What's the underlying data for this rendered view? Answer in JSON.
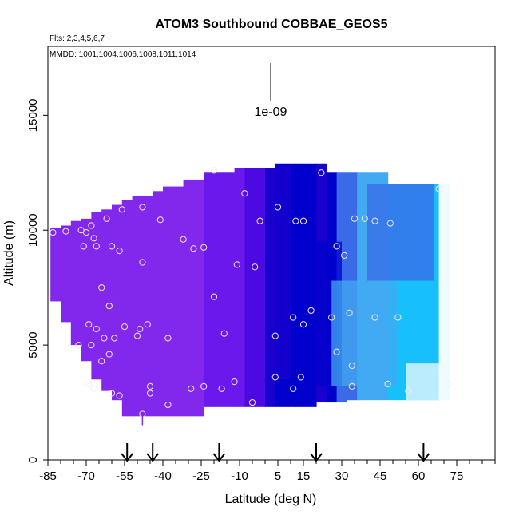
{
  "chart_data": {
    "type": "heatmap",
    "title": "ATOM3 Southbound COBBAE_GEOS5",
    "subtitle_flights": "Flts: 2,3,4,5,6,7",
    "subtitle_dates": "MMDD: 1001,1004,1006,1008,1011,1014",
    "xlabel": "Latitude (deg N)",
    "ylabel": "Altitude (m)",
    "xlim": [
      -85,
      90
    ],
    "ylim": [
      0,
      18000
    ],
    "x_ticks": [
      -85,
      -70,
      -55,
      -40,
      -25,
      -10,
      5,
      15,
      30,
      45,
      60,
      75
    ],
    "x_tick_labels": [
      "-85",
      "-70",
      "-55",
      "-40",
      "-25",
      "-10",
      "5",
      "15",
      "30",
      "45",
      "60",
      "75"
    ],
    "y_ticks": [
      0,
      5000,
      10000,
      15000
    ],
    "y_tick_labels": [
      "0",
      "5000",
      "10000",
      "15000"
    ],
    "scale_label": "1e-09",
    "grid": false,
    "arrow_latitudes": [
      -54,
      -44,
      -18,
      20,
      62
    ],
    "colors": [
      "#8228ed",
      "#6b18ec",
      "#4b0ae2",
      "#1a00cf",
      "#0000cc",
      "#3a6ae8",
      "#42aaf2",
      "#18c0fb",
      "#f0fbfe"
    ],
    "columns": [
      {
        "lat": -82,
        "top": 10100,
        "bottom": 6900,
        "c": 0
      },
      {
        "lat": -78,
        "top": 10200,
        "bottom": 6000,
        "c": 0
      },
      {
        "lat": -74,
        "top": 10400,
        "bottom": 5000,
        "c": 0
      },
      {
        "lat": -70,
        "top": 10500,
        "bottom": 4300,
        "c": 0
      },
      {
        "lat": -66,
        "top": 10800,
        "bottom": 3500,
        "c": 0
      },
      {
        "lat": -62,
        "top": 10900,
        "bottom": 3000,
        "c": 0
      },
      {
        "lat": -58,
        "top": 11100,
        "bottom": 2600,
        "c": 0
      },
      {
        "lat": -54,
        "top": 11300,
        "bottom": 1900,
        "c": 0
      },
      {
        "lat": -50,
        "top": 11500,
        "bottom": 1900,
        "c": 0
      },
      {
        "lat": -46,
        "top": 11500,
        "bottom": 1900,
        "c": 0
      },
      {
        "lat": -42,
        "top": 11700,
        "bottom": 1900,
        "c": 0
      },
      {
        "lat": -38,
        "top": 11900,
        "bottom": 1900,
        "c": 0
      },
      {
        "lat": -34,
        "top": 11900,
        "bottom": 1900,
        "c": 0
      },
      {
        "lat": -30,
        "top": 12200,
        "bottom": 1900,
        "c": 0
      },
      {
        "lat": -26,
        "top": 12200,
        "bottom": 1900,
        "c": 0
      },
      {
        "lat": -22,
        "top": 12500,
        "bottom": 2300,
        "c": 1
      },
      {
        "lat": -18,
        "top": 12500,
        "bottom": 2300,
        "c": 1
      },
      {
        "lat": -14,
        "top": 12500,
        "bottom": 2300,
        "c": 1
      },
      {
        "lat": -10,
        "top": 12700,
        "bottom": 2300,
        "c": 1
      },
      {
        "lat": -6,
        "top": 12700,
        "bottom": 2300,
        "c": 2
      },
      {
        "lat": -2,
        "top": 12700,
        "bottom": 2300,
        "c": 2
      },
      {
        "lat": 2,
        "top": 12700,
        "bottom": 2300,
        "c": 3
      },
      {
        "lat": 6,
        "top": 12900,
        "bottom": 2300,
        "c": 4
      },
      {
        "lat": 10,
        "top": 12900,
        "bottom": 2300,
        "c": 4
      },
      {
        "lat": 14,
        "top": 12900,
        "bottom": 2300,
        "c": 4
      },
      {
        "lat": 18,
        "top": 12900,
        "bottom": 2300,
        "c": 4
      },
      {
        "lat": 22,
        "top": 12900,
        "bottom": 2500,
        "c": 3
      },
      {
        "lat": 26,
        "top": 12500,
        "bottom": 2500,
        "c": 4
      },
      {
        "lat": 30,
        "top": 12500,
        "bottom": 2500,
        "c": 5
      },
      {
        "lat": 34,
        "top": 12500,
        "bottom": 2600,
        "c": 5
      },
      {
        "lat": 38,
        "top": 12500,
        "bottom": 2600,
        "c": 6
      },
      {
        "lat": 42,
        "top": 12500,
        "bottom": 2600,
        "c": 6
      },
      {
        "lat": 46,
        "top": 12500,
        "bottom": 2600,
        "c": 6
      },
      {
        "lat": 50,
        "top": 12000,
        "bottom": 2600,
        "c": 7
      },
      {
        "lat": 54,
        "top": 12000,
        "bottom": 2600,
        "c": 7
      },
      {
        "lat": 58,
        "top": 12000,
        "bottom": 2600,
        "c": 7
      },
      {
        "lat": 62,
        "top": 12000,
        "bottom": 2600,
        "c": 7
      },
      {
        "lat": 66,
        "top": 12000,
        "bottom": 2600,
        "c": 7
      },
      {
        "lat": 70,
        "top": 12000,
        "bottom": 2600,
        "c": 8
      }
    ],
    "overlays": [
      {
        "lat1": 20,
        "lat2": 30,
        "y1": 3200,
        "y2": 9500,
        "c": 4
      },
      {
        "lat1": 26,
        "lat2": 52,
        "y1": 3200,
        "y2": 7800,
        "c": 6
      },
      {
        "lat1": 40,
        "lat2": 66,
        "y1": 7800,
        "y2": 12000,
        "c": 5
      },
      {
        "lat1": 55,
        "lat2": 71,
        "y1": 2600,
        "y2": 4200,
        "c": 8
      },
      {
        "lat1": 4,
        "lat2": 10,
        "y1": 3500,
        "y2": 12800,
        "c": 3
      }
    ],
    "points": [
      {
        "lat": -83,
        "alt": 9900
      },
      {
        "lat": -78,
        "alt": 9950
      },
      {
        "lat": -72,
        "alt": 10000
      },
      {
        "lat": -70,
        "alt": 9900
      },
      {
        "lat": -68,
        "alt": 10200
      },
      {
        "lat": -71,
        "alt": 9300
      },
      {
        "lat": -67,
        "alt": 9650
      },
      {
        "lat": -66,
        "alt": 9300
      },
      {
        "lat": -62,
        "alt": 10500
      },
      {
        "lat": -60,
        "alt": 9300
      },
      {
        "lat": -57,
        "alt": 9100
      },
      {
        "lat": -56,
        "alt": 10900
      },
      {
        "lat": -48,
        "alt": 11000
      },
      {
        "lat": -41,
        "alt": 10450
      },
      {
        "lat": -48,
        "alt": 8600
      },
      {
        "lat": -32,
        "alt": 9600
      },
      {
        "lat": -28,
        "alt": 9200
      },
      {
        "lat": -24,
        "alt": 9250
      },
      {
        "lat": -64,
        "alt": 7500
      },
      {
        "lat": -61,
        "alt": 6700
      },
      {
        "lat": -69,
        "alt": 5900
      },
      {
        "lat": -66,
        "alt": 5700
      },
      {
        "lat": -73,
        "alt": 5000
      },
      {
        "lat": -68,
        "alt": 5000
      },
      {
        "lat": -63,
        "alt": 5300
      },
      {
        "lat": -59,
        "alt": 5300
      },
      {
        "lat": -55,
        "alt": 5800
      },
      {
        "lat": -50,
        "alt": 5400
      },
      {
        "lat": -49,
        "alt": 5700
      },
      {
        "lat": -46,
        "alt": 5900
      },
      {
        "lat": -64,
        "alt": 4300
      },
      {
        "lat": -61,
        "alt": 4600
      },
      {
        "lat": -38,
        "alt": 5300
      },
      {
        "lat": -69,
        "alt": 3300
      },
      {
        "lat": -67,
        "alt": 3100
      },
      {
        "lat": -60,
        "alt": 2900
      },
      {
        "lat": -57,
        "alt": 2800
      },
      {
        "lat": -45,
        "alt": 3200
      },
      {
        "lat": -45,
        "alt": 2900
      },
      {
        "lat": -38,
        "alt": 2400
      },
      {
        "lat": -29,
        "alt": 3100
      },
      {
        "lat": -24,
        "alt": 3200
      },
      {
        "lat": -17,
        "alt": 3100
      },
      {
        "lat": -12,
        "alt": 3400
      },
      {
        "lat": -5,
        "alt": 2500
      },
      {
        "lat": -20,
        "alt": 7100
      },
      {
        "lat": -16,
        "alt": 5500
      },
      {
        "lat": -11,
        "alt": 8500
      },
      {
        "lat": -4,
        "alt": 8400
      },
      {
        "lat": -20,
        "alt": 12600
      },
      {
        "lat": -8,
        "alt": 11600
      },
      {
        "lat": -2,
        "alt": 10400
      },
      {
        "lat": 5,
        "alt": 11000
      },
      {
        "lat": 12,
        "alt": 10400
      },
      {
        "lat": 15,
        "alt": 10400
      },
      {
        "lat": 22,
        "alt": 12500
      },
      {
        "lat": 28,
        "alt": 9300
      },
      {
        "lat": 31,
        "alt": 8900
      },
      {
        "lat": 35,
        "alt": 10500
      },
      {
        "lat": 39,
        "alt": 10500
      },
      {
        "lat": 43,
        "alt": 10400
      },
      {
        "lat": 49,
        "alt": 10300
      },
      {
        "lat": 68,
        "alt": 11800
      },
      {
        "lat": 4,
        "alt": 5400
      },
      {
        "lat": 11,
        "alt": 6200
      },
      {
        "lat": 15,
        "alt": 5900
      },
      {
        "lat": 18,
        "alt": 6500
      },
      {
        "lat": 26,
        "alt": 6200
      },
      {
        "lat": 33,
        "alt": 6400
      },
      {
        "lat": 43,
        "alt": 6200
      },
      {
        "lat": 52,
        "alt": 6200
      },
      {
        "lat": 28,
        "alt": 4700
      },
      {
        "lat": 34,
        "alt": 4100
      },
      {
        "lat": 4,
        "alt": 3600
      },
      {
        "lat": 14,
        "alt": 3600
      },
      {
        "lat": 11,
        "alt": 3100
      },
      {
        "lat": 34,
        "alt": 3200
      },
      {
        "lat": 48,
        "alt": 3300
      },
      {
        "lat": 56,
        "alt": 3000
      },
      {
        "lat": 72,
        "alt": 3300
      },
      {
        "lat": -48,
        "alt": 2000
      }
    ]
  }
}
